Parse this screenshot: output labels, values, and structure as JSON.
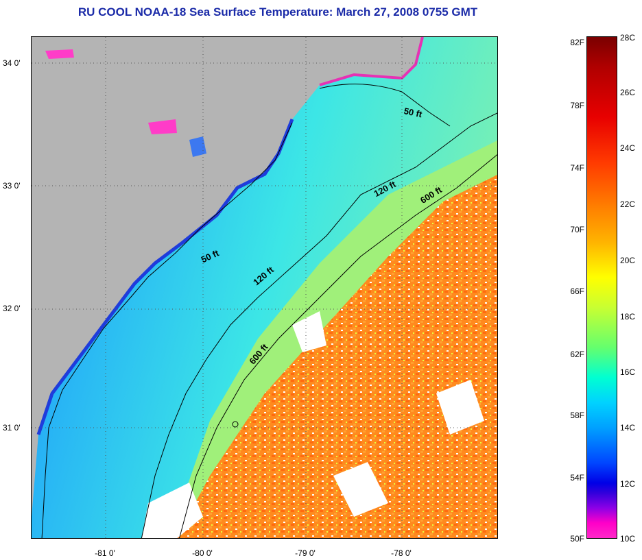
{
  "title": "RU COOL  NOAA-18  Sea Surface Temperature:  March 27, 2008 0755 GMT",
  "map": {
    "latitude_labels": [
      "34 0'",
      "33 0'",
      "32 0'",
      "31 0'"
    ],
    "longitude_labels": [
      "-81 0'",
      "-80 0'",
      "-79 0'",
      "-78 0'"
    ],
    "contour_labels": {
      "c50_north": "50 ft",
      "c50_south": "50 ft",
      "c120_north": "120 ft",
      "c120_south": "120 ft",
      "c600_north": "600 ft",
      "c600_south": "600 ft"
    },
    "colors": {
      "land": "#b4b4b4",
      "cold_shelf": "#2aa8f0",
      "mid_shelf": "#3ce6e6",
      "slope": "#a0f07a",
      "gulf_stream": "#ff8a1e",
      "cloud": "#ffffff"
    }
  },
  "colorbar": {
    "fahrenheit": [
      "82F",
      "78F",
      "74F",
      "70F",
      "66F",
      "62F",
      "58F",
      "54F",
      "50F"
    ],
    "celsius": [
      "28C",
      "26C",
      "24C",
      "22C",
      "20C",
      "18C",
      "16C",
      "14C",
      "12C",
      "10C"
    ],
    "range_f": [
      50,
      82
    ],
    "range_c": [
      10,
      28
    ]
  }
}
